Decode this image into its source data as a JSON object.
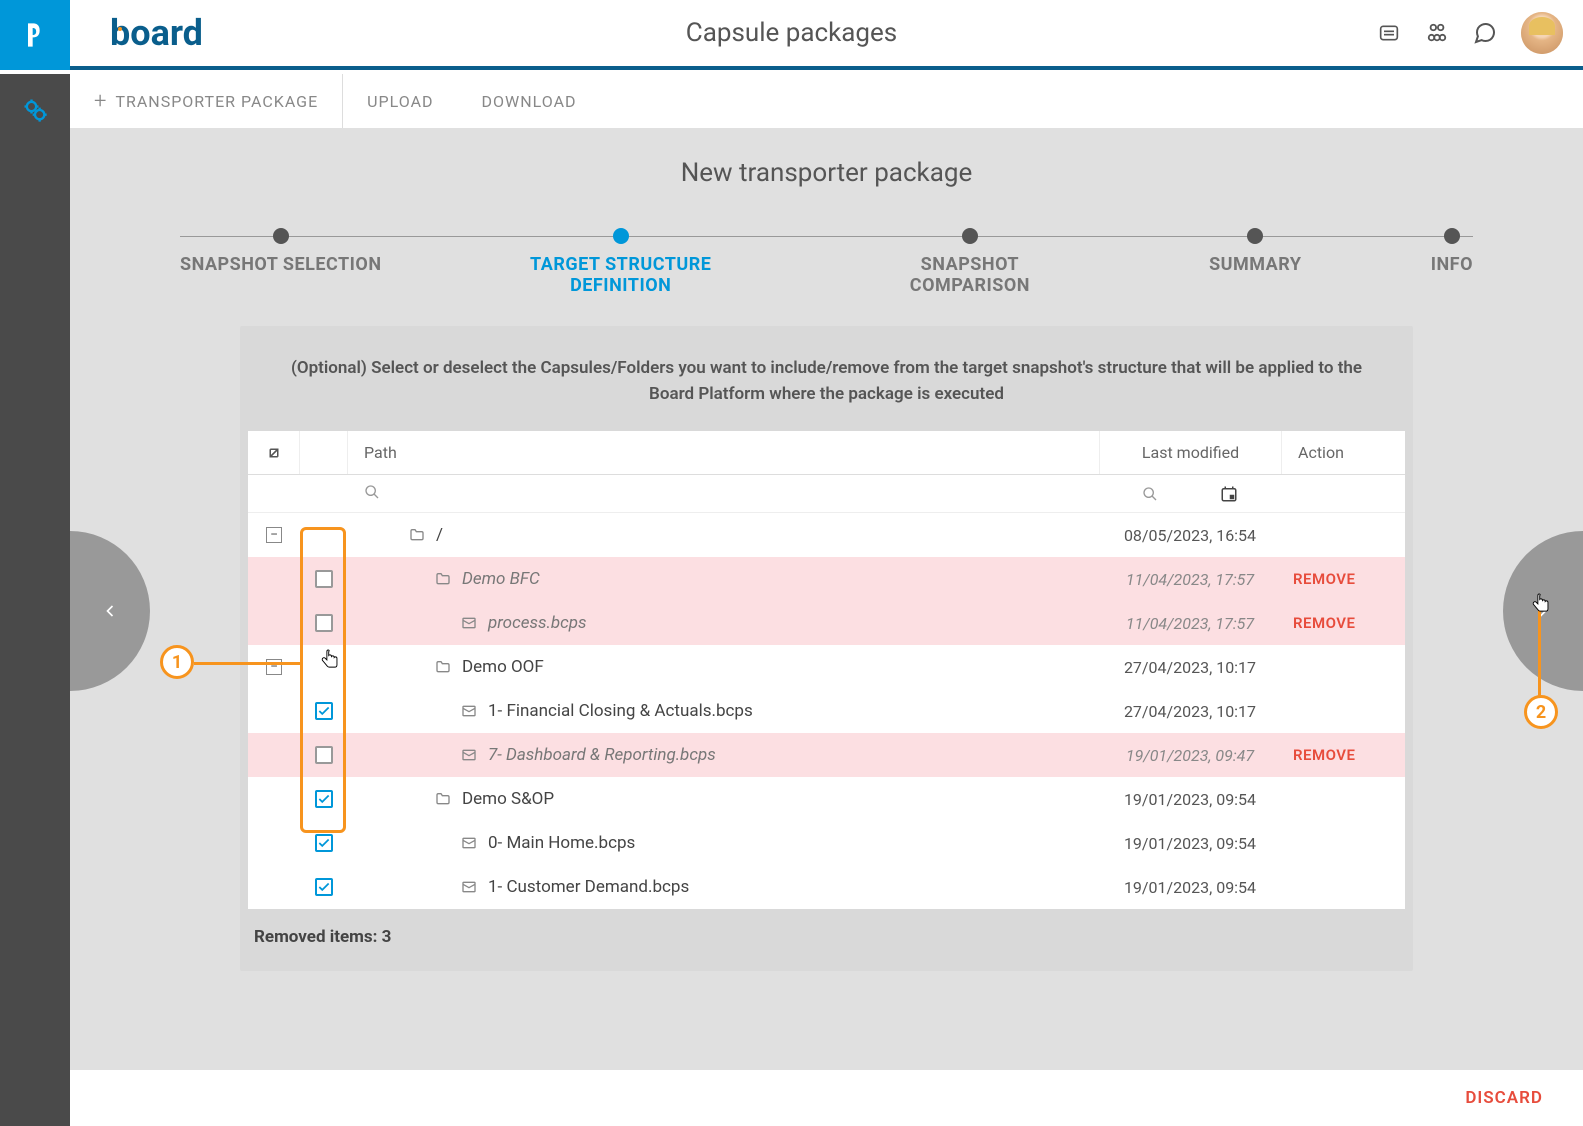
{
  "header": {
    "title": "Capsule packages",
    "brand": "board"
  },
  "toolbar": {
    "new_package": "TRANSPORTER PACKAGE",
    "upload": "UPLOAD",
    "download": "DOWNLOAD"
  },
  "page_subtitle": "New transporter package",
  "stepper": {
    "items": [
      {
        "label": "SNAPSHOT SELECTION",
        "active": false
      },
      {
        "label": "TARGET STRUCTURE DEFINITION",
        "active": true
      },
      {
        "label": "SNAPSHOT COMPARISON",
        "active": false
      },
      {
        "label": "SUMMARY",
        "active": false
      },
      {
        "label": "INFO",
        "active": false
      }
    ]
  },
  "panel": {
    "instruction": "(Optional) Select or deselect the Capsules/Folders you want to include/remove from the target snapshot's structure that will be applied to the Board Platform where the package is executed"
  },
  "table": {
    "columns": {
      "path": "Path",
      "modified": "Last modified",
      "action": "Action"
    },
    "rows": [
      {
        "type": "folder",
        "toggle": "partial",
        "check": "none",
        "indent": 1,
        "name": "/",
        "modified": "08/05/2023, 16:54",
        "action": "",
        "removed": false,
        "show_toggle": true
      },
      {
        "type": "folder",
        "toggle": "",
        "check": "unchecked",
        "indent": 2,
        "name": "Demo BFC",
        "modified": "11/04/2023, 17:57",
        "action": "REMOVE",
        "removed": true,
        "italic": true
      },
      {
        "type": "file",
        "toggle": "",
        "check": "unchecked",
        "indent": 3,
        "name": "process.bcps",
        "modified": "11/04/2023, 17:57",
        "action": "REMOVE",
        "removed": true,
        "italic": true
      },
      {
        "type": "folder",
        "toggle": "partial",
        "check": "none",
        "indent": 2,
        "name": "Demo OOF",
        "modified": "27/04/2023, 10:17",
        "action": "",
        "removed": false,
        "show_toggle": true
      },
      {
        "type": "file",
        "toggle": "",
        "check": "checked",
        "indent": 3,
        "name": "1- Financial Closing & Actuals.bcps",
        "modified": "27/04/2023, 10:17",
        "action": "",
        "removed": false
      },
      {
        "type": "file",
        "toggle": "",
        "check": "unchecked",
        "indent": 3,
        "name": "7- Dashboard & Reporting.bcps",
        "modified": "19/01/2023, 09:47",
        "action": "REMOVE",
        "removed": true,
        "italic": true
      },
      {
        "type": "folder",
        "toggle": "",
        "check": "checked",
        "indent": 2,
        "name": "Demo S&OP",
        "modified": "19/01/2023, 09:54",
        "action": "",
        "removed": false
      },
      {
        "type": "file",
        "toggle": "",
        "check": "checked",
        "indent": 3,
        "name": "0- Main Home.bcps",
        "modified": "19/01/2023, 09:54",
        "action": "",
        "removed": false
      },
      {
        "type": "file",
        "toggle": "",
        "check": "checked",
        "indent": 3,
        "name": "1- Customer Demand.bcps",
        "modified": "19/01/2023, 09:54",
        "action": "",
        "removed": false
      }
    ],
    "removed_summary": "Removed items: 3"
  },
  "discard": "DISCARD",
  "callouts": {
    "one": "1",
    "two": "2"
  }
}
